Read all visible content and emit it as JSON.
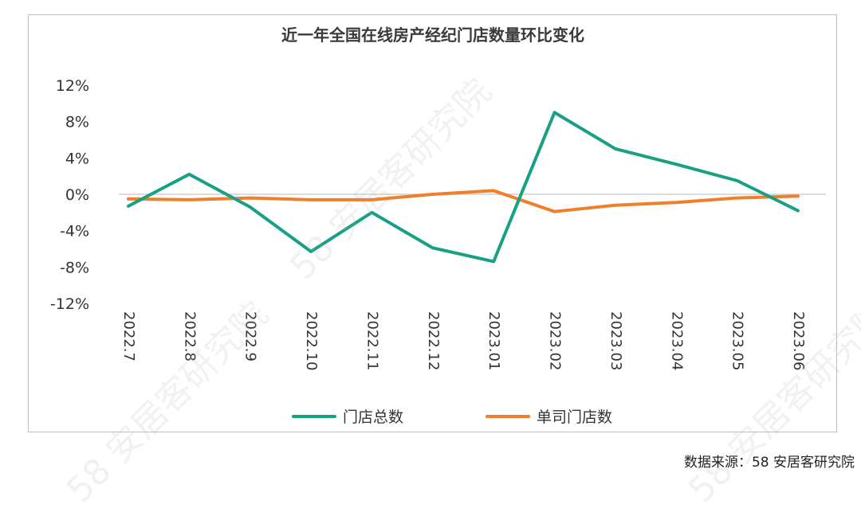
{
  "chart_data": {
    "type": "line",
    "title": "近一年全国在线房产经纪门店数量环比变化",
    "categories": [
      "2022.7",
      "2022.8",
      "2022.9",
      "2022.10",
      "2022.11",
      "2022.12",
      "2023.01",
      "2023.02",
      "2023.03",
      "2023.04",
      "2023.05",
      "2023.06"
    ],
    "series": [
      {
        "name": "门店总数",
        "color": "#17a085",
        "values": [
          -1.3,
          2.2,
          -1.4,
          -6.3,
          -2.0,
          -5.9,
          -7.4,
          9.0,
          5.0,
          3.3,
          1.5,
          -1.8
        ]
      },
      {
        "name": "单司门店数",
        "color": "#f07f2b",
        "values": [
          -0.5,
          -0.6,
          -0.4,
          -0.6,
          -0.6,
          0.0,
          0.4,
          -1.9,
          -1.2,
          -0.9,
          -0.4,
          -0.2
        ]
      }
    ],
    "y_ticks": [
      "12%",
      "8%",
      "4%",
      "0%",
      "-4%",
      "-8%",
      "-12%"
    ],
    "y_tick_values": [
      12,
      8,
      4,
      0,
      -4,
      -8,
      -12
    ],
    "ylim": [
      -12,
      12
    ],
    "zero_line_color": "#d0d0d0",
    "legend_placement": "bottom",
    "grid": false
  },
  "source_note": "数据来源：58 安居客研究院",
  "watermark_text": "58 安居客研究院"
}
